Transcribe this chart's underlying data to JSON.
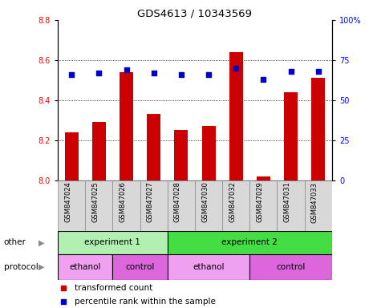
{
  "title": "GDS4613 / 10343569",
  "samples": [
    "GSM847024",
    "GSM847025",
    "GSM847026",
    "GSM847027",
    "GSM847028",
    "GSM847030",
    "GSM847032",
    "GSM847029",
    "GSM847031",
    "GSM847033"
  ],
  "bar_values": [
    8.24,
    8.29,
    8.54,
    8.33,
    8.25,
    8.27,
    8.64,
    8.02,
    8.44,
    8.51
  ],
  "dot_values": [
    66,
    67,
    69,
    67,
    66,
    66,
    70,
    63,
    68,
    68
  ],
  "bar_color": "#cc0000",
  "dot_color": "#0000cc",
  "ylim_left": [
    8.0,
    8.8
  ],
  "ylim_right": [
    0,
    100
  ],
  "yticks_left": [
    8.0,
    8.2,
    8.4,
    8.6,
    8.8
  ],
  "yticks_right": [
    0,
    25,
    50,
    75,
    100
  ],
  "ytick_labels_right": [
    "0",
    "25",
    "50",
    "75",
    "100%"
  ],
  "grid_yticks": [
    8.2,
    8.4,
    8.6
  ],
  "other_groups": [
    {
      "label": "experiment 1",
      "start": 0,
      "end": 4,
      "color": "#b2f0b2"
    },
    {
      "label": "experiment 2",
      "start": 4,
      "end": 10,
      "color": "#44dd44"
    }
  ],
  "protocol_groups": [
    {
      "label": "ethanol",
      "start": 0,
      "end": 2,
      "color": "#f0a0f0"
    },
    {
      "label": "control",
      "start": 2,
      "end": 4,
      "color": "#dd66dd"
    },
    {
      "label": "ethanol",
      "start": 4,
      "end": 7,
      "color": "#f0a0f0"
    },
    {
      "label": "control",
      "start": 7,
      "end": 10,
      "color": "#dd66dd"
    }
  ],
  "legend_items": [
    {
      "label": "transformed count",
      "color": "#cc0000"
    },
    {
      "label": "percentile rank within the sample",
      "color": "#0000cc"
    }
  ],
  "other_label": "other",
  "protocol_label": "protocol",
  "bar_width": 0.5
}
